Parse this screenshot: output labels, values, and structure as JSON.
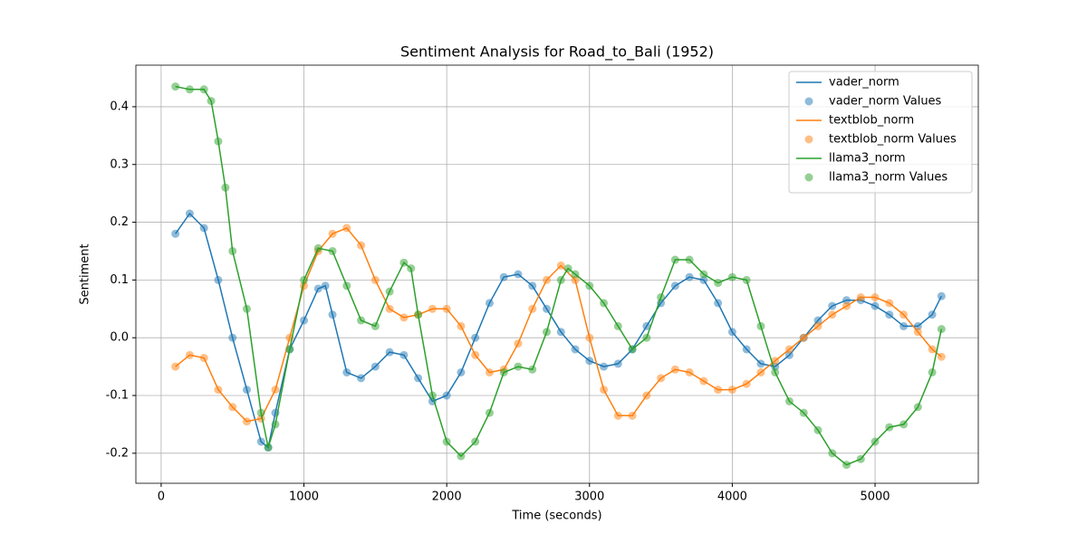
{
  "chart_data": {
    "type": "line",
    "title": "Sentiment Analysis for Road_to_Bali (1952)",
    "x_label": "Time (seconds)",
    "y_label": "Sentiment",
    "xlim": [
      -177,
      5723
    ],
    "ylim": [
      -0.252,
      0.472
    ],
    "xticks": [
      0,
      1000,
      2000,
      3000,
      4000,
      5000
    ],
    "yticks": [
      -0.2,
      -0.1,
      {
        "value": 0,
        "label": "0.0"
      },
      0.1,
      0.2,
      0.3,
      0.4
    ],
    "grid": true,
    "legend": "upper right",
    "series": [
      {
        "name": "vader_norm",
        "points_name": "vader_norm Values",
        "color": "#1f77b4",
        "x": [
          100,
          200,
          300,
          400,
          500,
          600,
          700,
          750,
          800,
          900,
          1000,
          1100,
          1150,
          1200,
          1300,
          1400,
          1500,
          1600,
          1700,
          1800,
          1900,
          2000,
          2100,
          2200,
          2300,
          2400,
          2500,
          2600,
          2700,
          2800,
          2900,
          3000,
          3100,
          3200,
          3300,
          3400,
          3500,
          3600,
          3700,
          3800,
          3900,
          4000,
          4100,
          4200,
          4300,
          4400,
          4500,
          4600,
          4700,
          4800,
          4900,
          5000,
          5100,
          5200,
          5300,
          5400,
          5465
        ],
        "values": [
          0.18,
          0.215,
          0.19,
          0.1,
          0.0,
          -0.09,
          -0.18,
          -0.19,
          -0.13,
          -0.02,
          0.03,
          0.085,
          0.09,
          0.04,
          -0.06,
          -0.07,
          -0.05,
          -0.025,
          -0.03,
          -0.07,
          -0.11,
          -0.1,
          -0.06,
          0.0,
          0.06,
          0.105,
          0.11,
          0.09,
          0.05,
          0.01,
          -0.02,
          -0.04,
          -0.05,
          -0.045,
          -0.02,
          0.02,
          0.06,
          0.09,
          0.105,
          0.1,
          0.06,
          0.01,
          -0.02,
          -0.045,
          -0.05,
          -0.03,
          0.0,
          0.03,
          0.055,
          0.065,
          0.065,
          0.055,
          0.04,
          0.02,
          0.02,
          0.04,
          0.072
        ]
      },
      {
        "name": "textblob_norm",
        "points_name": "textblob_norm Values",
        "color": "#ff7f0e",
        "x": [
          100,
          200,
          300,
          400,
          500,
          600,
          700,
          800,
          900,
          1000,
          1100,
          1200,
          1300,
          1400,
          1500,
          1600,
          1700,
          1800,
          1900,
          2000,
          2100,
          2200,
          2300,
          2400,
          2500,
          2600,
          2700,
          2800,
          2900,
          3000,
          3100,
          3200,
          3300,
          3400,
          3500,
          3600,
          3700,
          3800,
          3900,
          4000,
          4100,
          4200,
          4300,
          4400,
          4500,
          4600,
          4700,
          4800,
          4900,
          5000,
          5100,
          5200,
          5300,
          5400,
          5465
        ],
        "values": [
          -0.05,
          -0.03,
          -0.035,
          -0.09,
          -0.12,
          -0.145,
          -0.14,
          -0.09,
          0.0,
          0.09,
          0.15,
          0.18,
          0.19,
          0.16,
          0.1,
          0.05,
          0.035,
          0.04,
          0.05,
          0.05,
          0.02,
          -0.03,
          -0.06,
          -0.055,
          -0.01,
          0.05,
          0.1,
          0.125,
          0.1,
          0.0,
          -0.09,
          -0.135,
          -0.135,
          -0.1,
          -0.07,
          -0.055,
          -0.06,
          -0.075,
          -0.09,
          -0.09,
          -0.08,
          -0.06,
          -0.04,
          -0.02,
          0.0,
          0.02,
          0.04,
          0.055,
          0.07,
          0.07,
          0.06,
          0.04,
          0.01,
          -0.02,
          -0.033
        ]
      },
      {
        "name": "llama3_norm",
        "points_name": "llama3_norm Values",
        "color": "#2ca02c",
        "x": [
          100,
          200,
          300,
          350,
          400,
          450,
          500,
          600,
          700,
          750,
          800,
          900,
          1000,
          1100,
          1200,
          1300,
          1400,
          1500,
          1600,
          1700,
          1750,
          1800,
          1900,
          2000,
          2100,
          2200,
          2300,
          2400,
          2500,
          2600,
          2700,
          2800,
          2850,
          2900,
          3000,
          3100,
          3200,
          3300,
          3400,
          3500,
          3600,
          3700,
          3800,
          3900,
          4000,
          4100,
          4200,
          4300,
          4400,
          4500,
          4600,
          4700,
          4800,
          4900,
          5000,
          5100,
          5200,
          5300,
          5400,
          5465
        ],
        "values": [
          0.435,
          0.43,
          0.43,
          0.41,
          0.34,
          0.26,
          0.15,
          0.05,
          -0.13,
          -0.19,
          -0.15,
          -0.02,
          0.1,
          0.155,
          0.15,
          0.09,
          0.03,
          0.02,
          0.08,
          0.13,
          0.12,
          0.04,
          -0.1,
          -0.18,
          -0.205,
          -0.18,
          -0.13,
          -0.06,
          -0.05,
          -0.055,
          0.01,
          0.1,
          0.12,
          0.11,
          0.09,
          0.06,
          0.02,
          -0.02,
          0.0,
          0.07,
          0.135,
          0.135,
          0.11,
          0.095,
          0.105,
          0.1,
          0.02,
          -0.06,
          -0.11,
          -0.13,
          -0.16,
          -0.2,
          -0.22,
          -0.21,
          -0.18,
          -0.155,
          -0.15,
          -0.12,
          -0.06,
          0.015
        ]
      }
    ]
  }
}
